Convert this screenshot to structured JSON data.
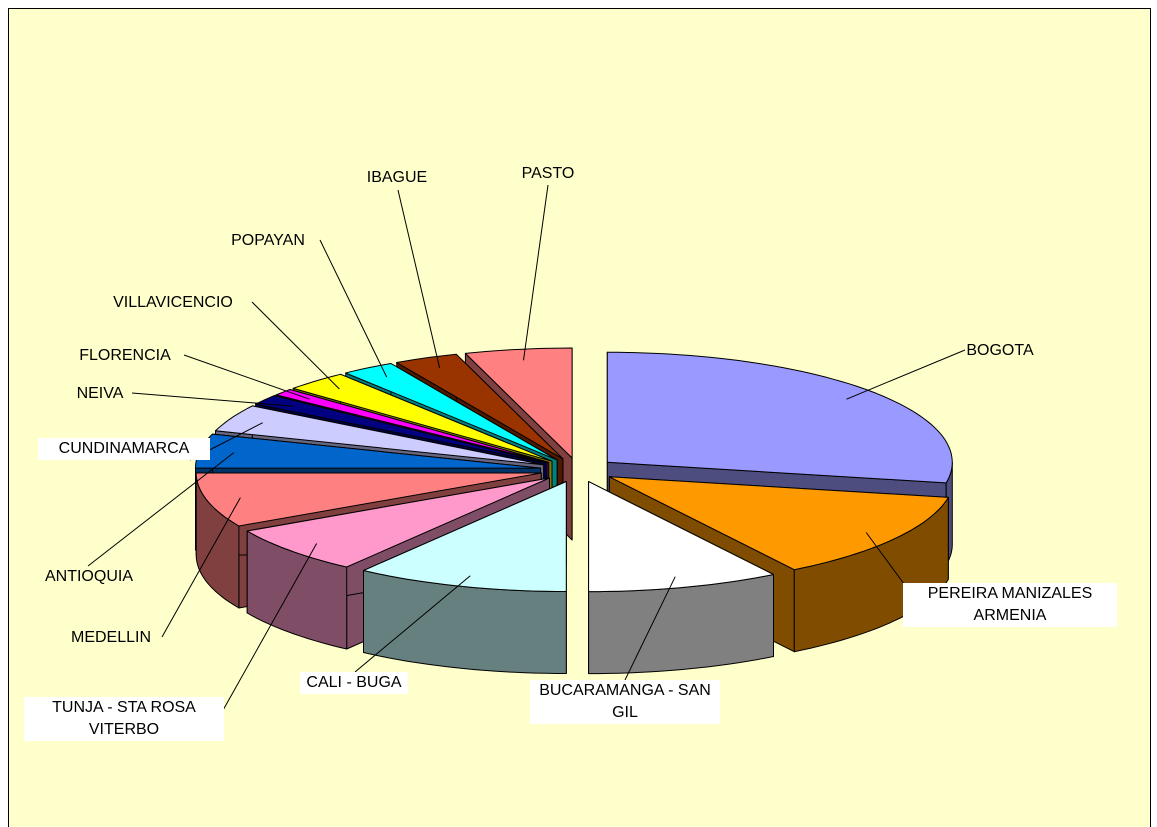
{
  "chart_data": {
    "type": "pie3d",
    "categories": [
      "BOGOTA",
      "PEREIRA MANIZALES ARMENIA",
      "BUCARAMANGA  - SAN GIL",
      "CALI - BUGA",
      "TUNJA - STA ROSA VITERBO",
      "MEDELLIN",
      "ANTIOQUIA",
      "CUNDINAMARCA",
      "NEIVA",
      "FLORENCIA",
      "VILLAVICENCIO",
      "POPAYAN",
      "IBAGUE",
      "PASTO"
    ],
    "values": [
      28,
      13,
      9,
      10,
      7,
      8,
      5,
      4,
      1.5,
      1,
      3,
      2.5,
      3,
      5
    ],
    "colors": [
      "#9999FF",
      "#FF9900",
      "#FFFFFF",
      "#CCFFFF",
      "#FF99CC",
      "#FF8080",
      "#0066CC",
      "#CCCCFF",
      "#000080",
      "#FF00FF",
      "#FFFF00",
      "#00FFFF",
      "#993300",
      "#FF8080"
    ]
  }
}
